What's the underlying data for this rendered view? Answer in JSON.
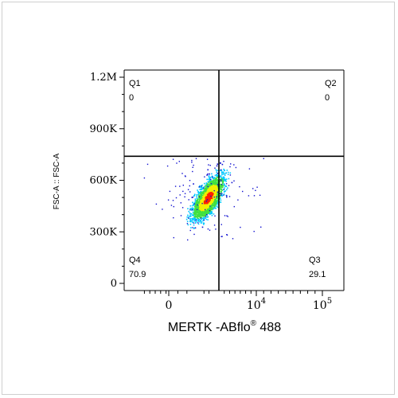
{
  "chart_data": {
    "type": "scatter",
    "title": "",
    "xlabel": "MERTK -ABflo",
    "xlabel_sup": "®",
    "xlabel_suffix": " 488",
    "ylabel": "FSC-A :: FSC-A",
    "x_scale": "biexponential",
    "y_scale": "linear",
    "ylim": [
      0,
      1200000
    ],
    "y_ticks": [
      {
        "value": 0,
        "label": "0"
      },
      {
        "value": 300000,
        "label": "300K"
      },
      {
        "value": 600000,
        "label": "600K"
      },
      {
        "value": 900000,
        "label": "900K"
      },
      {
        "value": 1200000,
        "label": "1.2M"
      }
    ],
    "x_ticks": [
      {
        "value": 0,
        "label": "0",
        "sup": ""
      },
      {
        "value": 10000,
        "label": "10",
        "sup": "4"
      },
      {
        "value": 100000,
        "label": "10",
        "sup": "5"
      }
    ],
    "gate": {
      "x": 3000,
      "y": 740000
    },
    "quadrants": [
      {
        "name": "Q1",
        "value": "0",
        "position": "top-left"
      },
      {
        "name": "Q2",
        "value": "0",
        "position": "top-right"
      },
      {
        "name": "Q3",
        "value": "29.1",
        "position": "bottom-right"
      },
      {
        "name": "Q4",
        "value": "70.9",
        "position": "bottom-left"
      }
    ],
    "population": {
      "x_center": 1900,
      "y_center": 500000,
      "y_range": [
        280000,
        730000
      ],
      "colormap": [
        "#1010d0",
        "#00c8ff",
        "#40e040",
        "#f0f000",
        "#ff2000"
      ]
    },
    "grid": false,
    "legend": "none"
  }
}
